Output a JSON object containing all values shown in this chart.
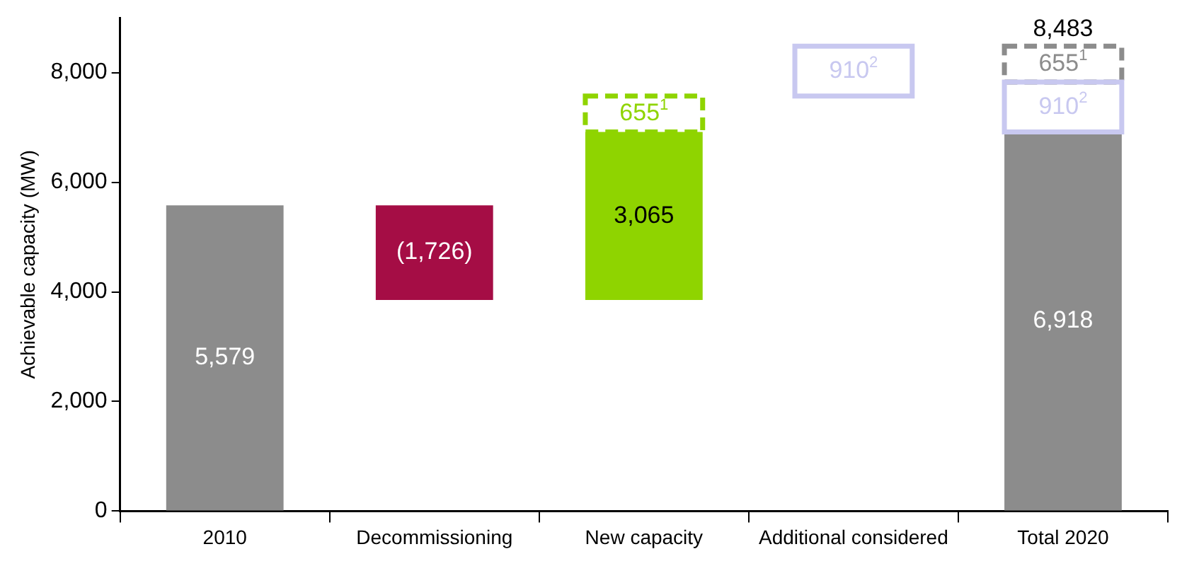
{
  "chart_data": {
    "type": "bar",
    "ylabel": "Achievable capacity (MW)",
    "categories": [
      "2010",
      "Decommissioning",
      "New capacity",
      "Additional considered",
      "Total 2020"
    ],
    "ylim": [
      0,
      9000
    ],
    "yticks": [
      {
        "value": 0,
        "label": "0"
      },
      {
        "value": 2000,
        "label": "2,000"
      },
      {
        "value": 4000,
        "label": "4,000"
      },
      {
        "value": 6000,
        "label": "6,000"
      },
      {
        "value": 8000,
        "label": "8,000"
      }
    ],
    "grid": false,
    "legend": false,
    "series": [
      {
        "colors": [
          "#8c8c8c",
          "#a50d45",
          "#8fd400",
          null,
          "#8c8c8c"
        ],
        "values": [
          5579,
          1726,
          3065,
          null,
          6918
        ],
        "base": [
          0,
          3853,
          3853,
          null,
          0
        ],
        "value_labels": [
          "5,579",
          "(1,726)",
          "3,065",
          null,
          "6,918"
        ]
      },
      {
        "colors": [
          null,
          null,
          "#8fd400",
          null,
          "#8c8c8c"
        ],
        "values": [
          null,
          null,
          655,
          null,
          655
        ],
        "base": [
          null,
          null,
          6918,
          null,
          7828
        ],
        "line_style": "dashed",
        "value_labels": [
          null,
          null,
          "655$^{1}$",
          null,
          "655$^{1}$"
        ]
      },
      {
        "color": "#c8c8f0",
        "values": [
          null,
          null,
          null,
          910,
          910
        ],
        "base": [
          null,
          null,
          null,
          7573,
          6918
        ],
        "line_style": "solid",
        "value_labels": [
          null,
          null,
          null,
          "910$^{2}$",
          "910$^{2}$"
        ]
      }
    ],
    "totals": [
      null,
      null,
      null,
      null,
      "8,483"
    ]
  }
}
